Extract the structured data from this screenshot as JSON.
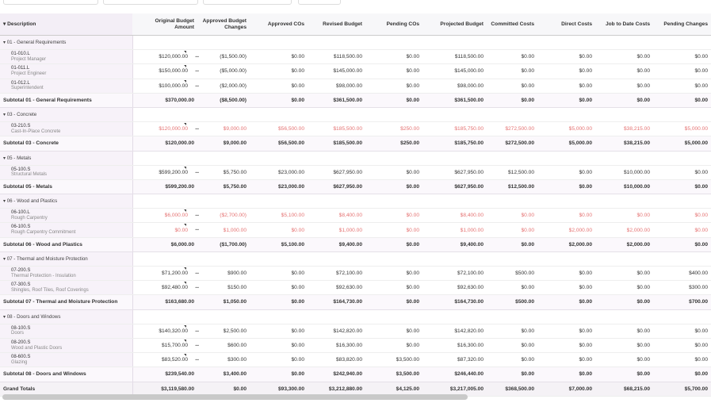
{
  "table": {
    "columns": [
      "Description",
      "Original Budget Amount",
      "Approved Budget Changes",
      "Approved COs",
      "Revised Budget",
      "Pending COs",
      "Projected Budget",
      "Committed Costs",
      "Direct Costs",
      "Job to Date Costs",
      "Pending Changes"
    ],
    "groups": [
      {
        "label": "01 - General Requirements",
        "items": [
          {
            "code": "01-010.L",
            "name": "Project Manager",
            "values": [
              "$120,000.00",
              "($1,500.00)",
              "$0.00",
              "$118,500.00",
              "$0.00",
              "$118,500.00",
              "$0.00",
              "$0.00",
              "$0.00",
              "$0.00"
            ]
          },
          {
            "code": "01-011.L",
            "name": "Project Engineer",
            "values": [
              "$150,000.00",
              "($5,000.00)",
              "$0.00",
              "$145,000.00",
              "$0.00",
              "$145,000.00",
              "$0.00",
              "$0.00",
              "$0.00",
              "$0.00"
            ]
          },
          {
            "code": "01-012.L",
            "name": "Superintendent",
            "values": [
              "$100,000.00",
              "($2,000.00)",
              "$0.00",
              "$98,000.00",
              "$0.00",
              "$98,000.00",
              "$0.00",
              "$0.00",
              "$0.00",
              "$0.00"
            ]
          }
        ],
        "subtotal": {
          "label": "Subtotal 01 - General Requirements",
          "values": [
            "$370,000.00",
            "($8,500.00)",
            "$0.00",
            "$361,500.00",
            "$0.00",
            "$361,500.00",
            "$0.00",
            "$0.00",
            "$0.00",
            "$0.00"
          ]
        }
      },
      {
        "label": "03 - Concrete",
        "items": [
          {
            "code": "03-210.S",
            "name": "Cast-In-Place Concrete",
            "color": "#e57373",
            "values": [
              "$120,000.00",
              "$9,000.00",
              "$56,500.00",
              "$185,500.00",
              "$250.00",
              "$185,750.00",
              "$272,500.00",
              "$5,000.00",
              "$38,215.00",
              "$5,000.00"
            ]
          }
        ],
        "subtotal": {
          "label": "Subtotal 03 - Concrete",
          "values": [
            "$120,000.00",
            "$9,000.00",
            "$56,500.00",
            "$185,500.00",
            "$250.00",
            "$185,750.00",
            "$272,500.00",
            "$5,000.00",
            "$38,215.00",
            "$5,000.00"
          ]
        }
      },
      {
        "label": "05 - Metals",
        "items": [
          {
            "code": "05-100.S",
            "name": "Structural Metals",
            "values": [
              "$599,200.00",
              "$5,750.00",
              "$23,000.00",
              "$627,950.00",
              "$0.00",
              "$627,950.00",
              "$12,500.00",
              "$0.00",
              "$10,000.00",
              "$0.00"
            ]
          }
        ],
        "subtotal": {
          "label": "Subtotal 05 - Metals",
          "values": [
            "$599,200.00",
            "$5,750.00",
            "$23,000.00",
            "$627,950.00",
            "$0.00",
            "$627,950.00",
            "$12,500.00",
            "$0.00",
            "$10,000.00",
            "$0.00"
          ]
        }
      },
      {
        "label": "06 - Wood and Plastics",
        "items": [
          {
            "code": "06-100.L",
            "name": "Rough Carpentry",
            "color": "#e57373",
            "values": [
              "$6,000.00",
              "($2,700.00)",
              "$5,100.00",
              "$8,400.00",
              "$0.00",
              "$8,400.00",
              "$0.00",
              "$0.00",
              "$0.00",
              "$0.00"
            ]
          },
          {
            "code": "06-100.S",
            "name": "Rough Carpentry Commitment",
            "color": "#e57373",
            "values": [
              "$0.00",
              "$1,000.00",
              "$0.00",
              "$1,000.00",
              "$0.00",
              "$1,000.00",
              "$0.00",
              "$2,000.00",
              "$2,000.00",
              "$0.00"
            ]
          }
        ],
        "subtotal": {
          "label": "Subtotal 06 - Wood and Plastics",
          "values": [
            "$6,000.00",
            "($1,700.00)",
            "$5,100.00",
            "$9,400.00",
            "$0.00",
            "$9,400.00",
            "$0.00",
            "$2,000.00",
            "$2,000.00",
            "$0.00"
          ]
        }
      },
      {
        "label": "07 - Thermal and Moisture Protection",
        "items": [
          {
            "code": "07-200.S",
            "name": "Thermal Protection - Insulation",
            "values": [
              "$71,200.00",
              "$900.00",
              "$0.00",
              "$72,100.00",
              "$0.00",
              "$72,100.00",
              "$500.00",
              "$0.00",
              "$0.00",
              "$400.00"
            ]
          },
          {
            "code": "07-300.S",
            "name": "Shingles, Roof Tiles, Roof Coverings",
            "values": [
              "$92,480.00",
              "$150.00",
              "$0.00",
              "$92,630.00",
              "$0.00",
              "$92,630.00",
              "$0.00",
              "$0.00",
              "$0.00",
              "$300.00"
            ]
          }
        ],
        "subtotal": {
          "label": "Subtotal 07 - Thermal and Moisture Protection",
          "values": [
            "$163,680.00",
            "$1,050.00",
            "$0.00",
            "$164,730.00",
            "$0.00",
            "$164,730.00",
            "$500.00",
            "$0.00",
            "$0.00",
            "$700.00"
          ]
        }
      },
      {
        "label": "08 - Doors and Windows",
        "items": [
          {
            "code": "08-100.S",
            "name": "Doors",
            "values": [
              "$140,320.00",
              "$2,500.00",
              "$0.00",
              "$142,820.00",
              "$0.00",
              "$142,820.00",
              "$0.00",
              "$0.00",
              "$0.00",
              "$0.00"
            ]
          },
          {
            "code": "08-200.S",
            "name": "Wood and Plastic Doors",
            "values": [
              "$15,700.00",
              "$600.00",
              "$0.00",
              "$16,300.00",
              "$0.00",
              "$16,300.00",
              "$0.00",
              "$0.00",
              "$0.00",
              "$0.00"
            ]
          },
          {
            "code": "08-600.S",
            "name": "Glazing",
            "values": [
              "$83,520.00",
              "$300.00",
              "$0.00",
              "$83,820.00",
              "$3,500.00",
              "$87,320.00",
              "$0.00",
              "$0.00",
              "$0.00",
              "$0.00"
            ]
          }
        ],
        "subtotal": {
          "label": "Subtotal 08 - Doors and Windows",
          "values": [
            "$239,540.00",
            "$3,400.00",
            "$0.00",
            "$242,940.00",
            "$3,500.00",
            "$246,440.00",
            "$0.00",
            "$0.00",
            "$0.00",
            "$0.00"
          ]
        }
      }
    ],
    "grand_totals": {
      "label": "Grand Totals",
      "values": [
        "$3,119,580.00",
        "$0.00",
        "$93,300.00",
        "$3,212,880.00",
        "$4,125.00",
        "$3,217,005.00",
        "$368,500.00",
        "$7,000.00",
        "$68,215.00",
        "$5,700.00"
      ]
    }
  }
}
